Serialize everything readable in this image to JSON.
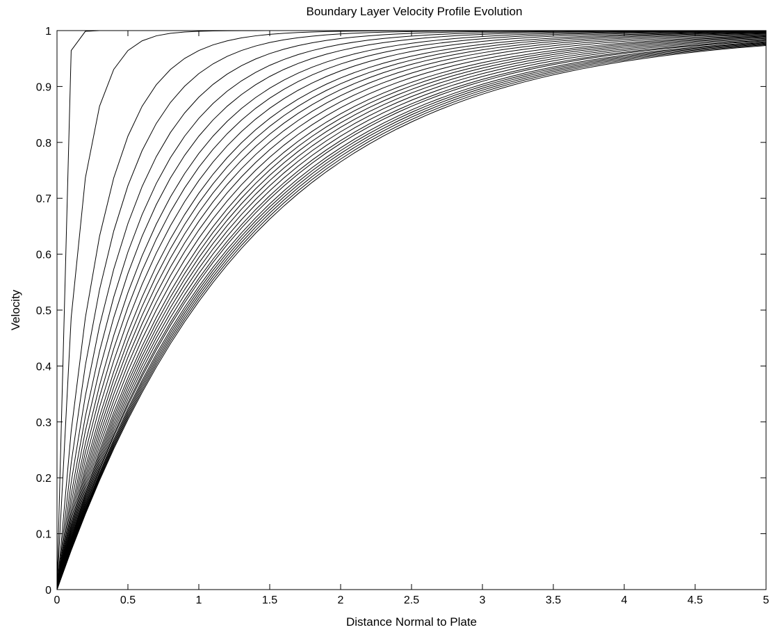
{
  "chart_data": {
    "type": "line",
    "title": "Boundary Layer Velocity Profile Evolution",
    "xlabel": "Distance Normal to Plate",
    "ylabel": "Velocity",
    "xlim": [
      0,
      5
    ],
    "ylim": [
      0,
      1
    ],
    "xticks": [
      "0",
      "0.5",
      "1",
      "1.5",
      "2",
      "2.5",
      "3",
      "3.5",
      "4",
      "4.5",
      "5"
    ],
    "yticks": [
      "0",
      "0.1",
      "0.2",
      "0.3",
      "0.4",
      "0.5",
      "0.6",
      "0.7",
      "0.8",
      "0.9",
      "1"
    ],
    "grid": false,
    "legend": "none",
    "line_color": "#000000",
    "curve_family": {
      "description": "velocity = 1 - exp(-x/d) profiles; scale d per curve",
      "scales": [
        0.03,
        0.15,
        0.3,
        0.39,
        0.47,
        0.54,
        0.6,
        0.66,
        0.71,
        0.76,
        0.81,
        0.85,
        0.89,
        0.93,
        0.97,
        1.01,
        1.05,
        1.08,
        1.11,
        1.14,
        1.17,
        1.2,
        1.23,
        1.25,
        1.28,
        1.3,
        1.32,
        1.34,
        1.36,
        1.38
      ],
      "x_step": 0.1
    },
    "series": []
  }
}
